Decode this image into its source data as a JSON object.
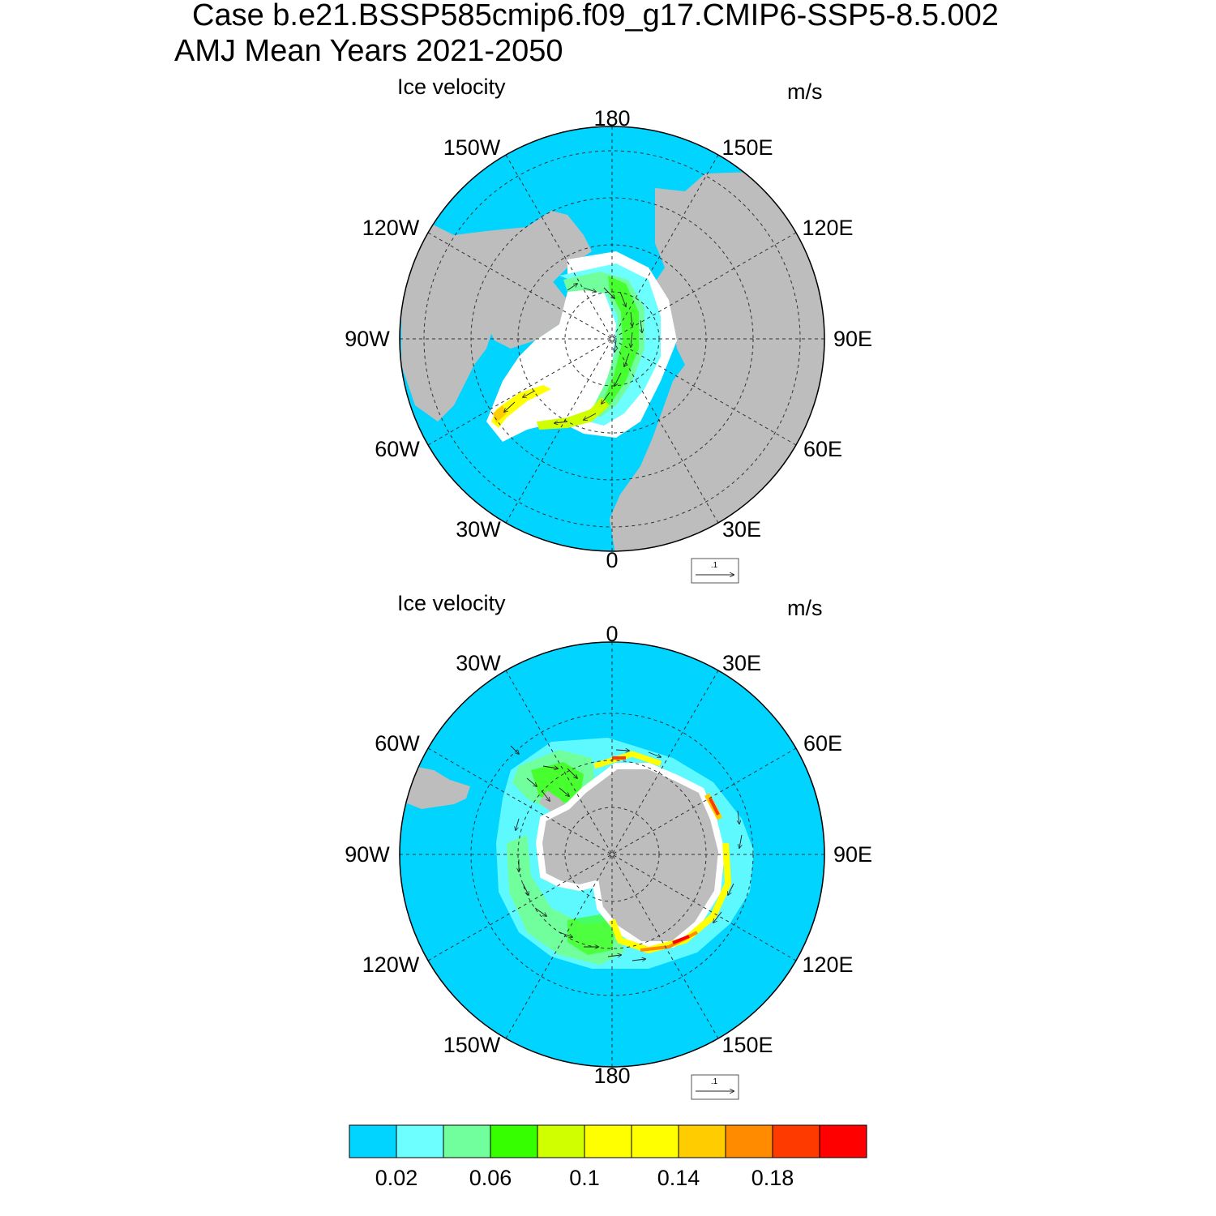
{
  "title": {
    "line1": "Case b.e21.BSSP585cmip6.f09_g17.CMIP6-SSP5-8.5.002",
    "line2": "AMJ Mean   Years 2021-2050"
  },
  "panels": [
    {
      "hemisphere": "north",
      "variable_label": "Ice velocity",
      "units_label": "m/s",
      "longitude_labels": [
        "180",
        "150E",
        "120E",
        "90E",
        "60E",
        "30E",
        "0",
        "30W",
        "60W",
        "90W",
        "120W",
        "150W"
      ],
      "reference_vector_label": ".1"
    },
    {
      "hemisphere": "south",
      "variable_label": "Ice velocity",
      "units_label": "m/s",
      "longitude_labels": [
        "0",
        "30E",
        "60E",
        "90E",
        "120E",
        "150E",
        "180",
        "150W",
        "120W",
        "90W",
        "60W",
        "30W"
      ],
      "reference_vector_label": ".1"
    }
  ],
  "colorbar": {
    "colors": [
      "#00d4ff",
      "#6dffff",
      "#70ff9c",
      "#36ff00",
      "#d0ff00",
      "#ffff00",
      "#ffff00",
      "#ffcc00",
      "#ff8c00",
      "#ff3a00",
      "#ff0000"
    ],
    "tick_labels": [
      "0.02",
      "0.06",
      "0.1",
      "0.14",
      "0.18"
    ]
  },
  "colors": {
    "ocean": "#00d4ff",
    "land": "#bdbdbd",
    "grid": "#333333"
  }
}
